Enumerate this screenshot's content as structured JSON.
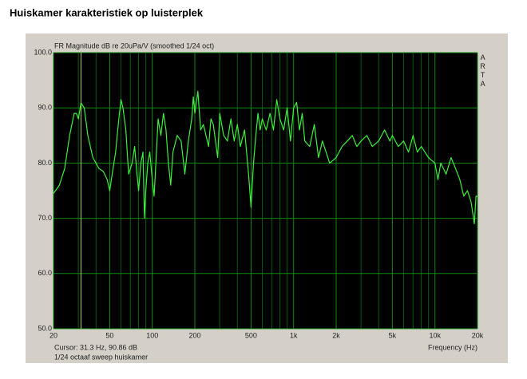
{
  "chart_data": {
    "type": "line",
    "page_title": "Huiskamer karakteristiek op luisterplek",
    "title": "FR Magnitude dB re 20uPa/V (smoothed 1/24 oct)",
    "brand": "ARTA",
    "xlabel": "Frequency (Hz)",
    "note": "1/24 octaaf sweep huiskamer",
    "cursor": {
      "x": 31.3,
      "y": 90.86,
      "label": "Cursor: 31.3 Hz, 90.86 dB",
      "color": "#b8d060"
    },
    "xscale": "log",
    "grid": true,
    "xlim": [
      20,
      20000
    ],
    "ylim": [
      50,
      100
    ],
    "xticks": [
      20,
      50,
      100,
      200,
      500,
      {
        "value": 1000,
        "label": "1k"
      },
      {
        "value": 2000,
        "label": "2k"
      },
      {
        "value": 5000,
        "label": "5k"
      },
      {
        "value": 10000,
        "label": "10k"
      },
      {
        "value": 20000,
        "label": "20k"
      }
    ],
    "xminor": [
      30,
      40,
      60,
      70,
      80,
      90,
      300,
      400,
      600,
      700,
      800,
      900,
      3000,
      4000,
      6000,
      7000,
      8000,
      9000
    ],
    "yticks": [
      {
        "value": 50,
        "label": "50.0"
      },
      {
        "value": 60,
        "label": "60.0"
      },
      {
        "value": 70,
        "label": "70.0"
      },
      {
        "value": 80,
        "label": "80.0"
      },
      {
        "value": 90,
        "label": "90.0"
      },
      {
        "value": 100,
        "label": "100.0"
      }
    ],
    "x": [
      20,
      22,
      24,
      26,
      28,
      29,
      30,
      31.3,
      33,
      35,
      38,
      42,
      45,
      48,
      50,
      52,
      55,
      58,
      60,
      62,
      65,
      68,
      72,
      75,
      78,
      80,
      83,
      86,
      88,
      90,
      93,
      96,
      100,
      103,
      106,
      110,
      115,
      120,
      125,
      130,
      135,
      140,
      150,
      160,
      170,
      180,
      190,
      195,
      200,
      210,
      220,
      230,
      240,
      250,
      260,
      270,
      280,
      290,
      300,
      320,
      340,
      360,
      380,
      400,
      420,
      450,
      480,
      500,
      520,
      540,
      560,
      580,
      600,
      640,
      680,
      720,
      760,
      800,
      850,
      900,
      950,
      1000,
      1050,
      1100,
      1150,
      1200,
      1300,
      1400,
      1500,
      1600,
      1800,
      2000,
      2200,
      2400,
      2600,
      2800,
      3000,
      3300,
      3600,
      4000,
      4400,
      4800,
      5000,
      5500,
      6000,
      6500,
      7000,
      7500,
      8000,
      9000,
      10000,
      10500,
      11000,
      12000,
      13000,
      14000,
      15000,
      16000,
      17000,
      18000,
      19000,
      19500,
      20000
    ],
    "series": [
      {
        "name": "FR",
        "color": "#3cf03c",
        "values": [
          74.5,
          76,
          79,
          85,
          89,
          89,
          88,
          90.9,
          90,
          85,
          81,
          79,
          78.5,
          77,
          75,
          78,
          82,
          88,
          91.5,
          90,
          86,
          78,
          80,
          83,
          78,
          75,
          80,
          82,
          70,
          75,
          80,
          82,
          77,
          74,
          80,
          88,
          85,
          89,
          86,
          80,
          76,
          82,
          85,
          84,
          78,
          84,
          88,
          92,
          89,
          93,
          86,
          87,
          85,
          83,
          88,
          87,
          84,
          81,
          89,
          85,
          84,
          88,
          84,
          87,
          83,
          86,
          78,
          72,
          80,
          85,
          89,
          86,
          88,
          86,
          89,
          86,
          91.5,
          88,
          86,
          90,
          84,
          90,
          91,
          86,
          89,
          84,
          83,
          87,
          81,
          84,
          80,
          81,
          83,
          84,
          85,
          83,
          84,
          85,
          83,
          84,
          86,
          84,
          85,
          83,
          84,
          82,
          85,
          82,
          83,
          81,
          80,
          77,
          80,
          78,
          81,
          79,
          77,
          74,
          75,
          73,
          69,
          74,
          74
        ]
      }
    ]
  }
}
